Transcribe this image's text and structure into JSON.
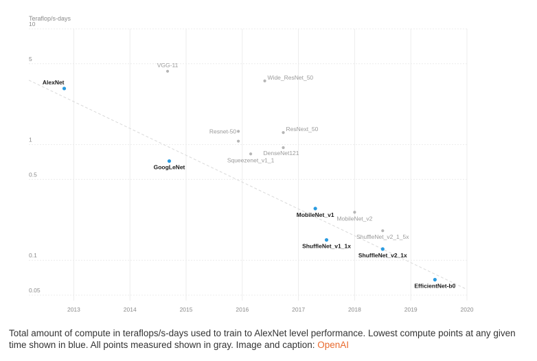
{
  "chart_data": {
    "type": "scatter",
    "title": "",
    "ylabel": "Teraflop/s-days",
    "xlabel": "",
    "yscale": "log",
    "ylim": [
      0.05,
      10
    ],
    "xlim": [
      2012.2,
      2020
    ],
    "yticks": [
      {
        "value": 10,
        "label": "10"
      },
      {
        "value": 5,
        "label": "5"
      },
      {
        "value": 1,
        "label": "1"
      },
      {
        "value": 0.5,
        "label": "0.5"
      },
      {
        "value": 0.1,
        "label": "0.1"
      },
      {
        "value": 0.05,
        "label": "0.05"
      }
    ],
    "xticks": [
      {
        "value": 2013,
        "label": "2013"
      },
      {
        "value": 2014,
        "label": "2014"
      },
      {
        "value": 2015,
        "label": "2015"
      },
      {
        "value": 2016,
        "label": "2016"
      },
      {
        "value": 2017,
        "label": "2017"
      },
      {
        "value": 2018,
        "label": "2018"
      },
      {
        "value": 2019,
        "label": "2019"
      },
      {
        "value": 2020,
        "label": "2020"
      }
    ],
    "trendline": {
      "x": [
        2012.2,
        2020
      ],
      "y": [
        3.6,
        0.056
      ]
    },
    "colors": {
      "blue": "#2a9be0",
      "gray": "#b5b5b5",
      "grid": "#ececec",
      "trend": "#d9d9d9"
    },
    "series": [
      {
        "name": "Lowest compute (blue)",
        "color": "#2a9be0",
        "points": [
          {
            "label": "AlexNet",
            "x": 2012.83,
            "y": 3.05,
            "anchor": "end",
            "pos": "above"
          },
          {
            "label": "GoogLeNet",
            "x": 2014.7,
            "y": 0.72,
            "anchor": "middle",
            "pos": "below"
          },
          {
            "label": "MobileNet_v1",
            "x": 2017.3,
            "y": 0.28,
            "anchor": "middle",
            "pos": "below"
          },
          {
            "label": "ShuffleNet_v1_1x",
            "x": 2017.5,
            "y": 0.15,
            "anchor": "middle",
            "pos": "below"
          },
          {
            "label": "ShuffleNet_v2_1x",
            "x": 2018.5,
            "y": 0.125,
            "anchor": "middle",
            "pos": "below"
          },
          {
            "label": "EfficientNet-b0",
            "x": 2019.43,
            "y": 0.068,
            "anchor": "middle",
            "pos": "below"
          }
        ]
      },
      {
        "name": "All points (gray)",
        "color": "#b5b5b5",
        "points": [
          {
            "label": "VGG-11",
            "x": 2014.67,
            "y": 4.3,
            "anchor": "middle",
            "pos": "above"
          },
          {
            "label": "Wide_ResNet_50",
            "x": 2016.4,
            "y": 3.55,
            "anchor": "start",
            "pos": "right"
          },
          {
            "label": "Resnet-50",
            "x": 2015.93,
            "y": 1.3,
            "anchor": "end",
            "pos": "left"
          },
          {
            "label": "",
            "x": 2015.93,
            "y": 1.07,
            "anchor": "middle",
            "pos": "none"
          },
          {
            "label": "ResNext_50",
            "x": 2016.73,
            "y": 1.27,
            "anchor": "start",
            "pos": "right"
          },
          {
            "label": "DenseNet121",
            "x": 2016.73,
            "y": 0.94,
            "anchor": "start",
            "pos": "belowright"
          },
          {
            "label": "Squeezenet_v1_1",
            "x": 2016.15,
            "y": 0.83,
            "anchor": "middle",
            "pos": "below"
          },
          {
            "label": "MobileNet_v2",
            "x": 2018.0,
            "y": 0.26,
            "anchor": "middle",
            "pos": "below"
          },
          {
            "label": "ShuffleNet_v2_1_5x",
            "x": 2018.5,
            "y": 0.18,
            "anchor": "middle",
            "pos": "below"
          }
        ]
      }
    ]
  },
  "caption": {
    "text": "Total amount of compute in teraflops/s-days used to train to AlexNet level performance. Lowest compute points at any given time shown in blue. All points measured shown in gray. Image and caption: ",
    "link_text": "OpenAI"
  }
}
